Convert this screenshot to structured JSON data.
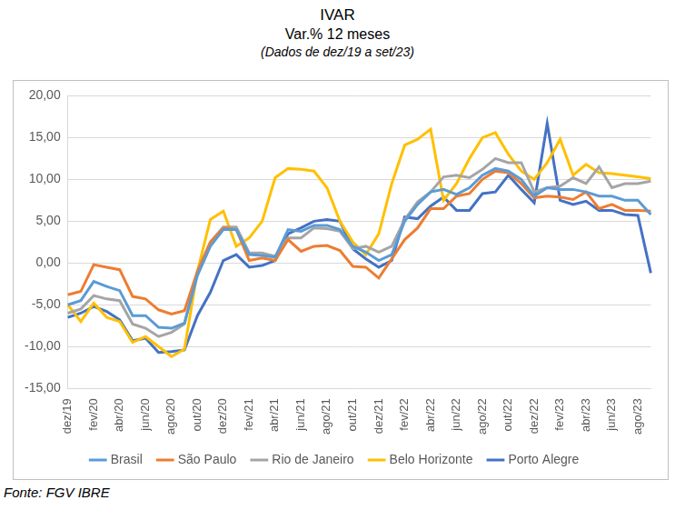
{
  "chart_data": {
    "type": "line",
    "title": "IVAR",
    "subtitle": "Var.% 12 meses",
    "annotations": [
      "(Dados de dez/19 a set/23)",
      "Fonte: FGV IBRE"
    ],
    "categories": [
      "dez/19",
      null,
      "fev/20",
      null,
      "abr/20",
      null,
      "jun/20",
      null,
      "ago/20",
      null,
      "out/20",
      null,
      "dez/20",
      null,
      "fev/21",
      null,
      "abr/21",
      null,
      "jun/21",
      null,
      "ago/21",
      null,
      "out/21",
      null,
      "dez/21",
      null,
      "fev/22",
      null,
      "abr/22",
      null,
      "jun/22",
      null,
      "ago/22",
      null,
      "out/22",
      null,
      "dez/22",
      null,
      "fev/23",
      null,
      "abr/23",
      null,
      "jun/23",
      null,
      "ago/23",
      null
    ],
    "series": [
      {
        "name": "Brasil",
        "color": "#5b9bd5",
        "values": [
          -5.0,
          -4.5,
          -2.2,
          -2.8,
          -3.3,
          -6.3,
          -6.3,
          -7.7,
          -7.8,
          -7.2,
          -1.5,
          2.0,
          4.0,
          4.0,
          1.0,
          0.9,
          0.7,
          4.0,
          3.8,
          4.5,
          4.5,
          4.0,
          2.0,
          1.3,
          0.3,
          1.0,
          5.0,
          7.0,
          8.5,
          8.8,
          8.2,
          9.0,
          10.5,
          11.3,
          11.0,
          10.0,
          8.0,
          9.0,
          8.8,
          8.8,
          8.5,
          8.0,
          8.0,
          7.5,
          7.5,
          5.8
        ]
      },
      {
        "name": "São Paulo",
        "color": "#ed7d31",
        "values": [
          -3.8,
          -3.4,
          -0.2,
          -0.5,
          -0.8,
          -4.0,
          -4.3,
          -5.6,
          -6.1,
          -5.7,
          -1.0,
          2.5,
          4.2,
          4.0,
          0.3,
          0.6,
          0.3,
          2.8,
          1.4,
          2.0,
          2.1,
          1.5,
          -0.4,
          -0.5,
          -1.8,
          0.5,
          2.8,
          4.2,
          6.5,
          6.5,
          8.0,
          8.3,
          10.0,
          11.0,
          10.8,
          9.5,
          7.8,
          8.0,
          7.9,
          7.6,
          8.5,
          6.5,
          7.0,
          6.3,
          6.3,
          6.2
        ]
      },
      {
        "name": "Rio de Janeiro",
        "color": "#a5a5a5",
        "values": [
          -6.0,
          -5.5,
          -3.9,
          -4.3,
          -4.5,
          -7.3,
          -7.8,
          -8.8,
          -8.3,
          -7.3,
          -1.0,
          2.5,
          4.3,
          4.3,
          1.2,
          1.2,
          0.8,
          3.0,
          3.0,
          4.2,
          4.1,
          3.8,
          1.7,
          2.0,
          1.3,
          2.0,
          5.2,
          7.3,
          8.5,
          10.3,
          10.5,
          10.2,
          11.2,
          12.5,
          12.0,
          12.0,
          8.5,
          9.0,
          9.2,
          10.2,
          9.5,
          11.5,
          9.0,
          9.5,
          9.5,
          9.8
        ]
      },
      {
        "name": "Belo Horizonte",
        "color": "#ffc000",
        "values": [
          -5.0,
          -7.0,
          -4.8,
          -6.5,
          -7.0,
          -9.5,
          -8.8,
          -10.0,
          -11.2,
          -10.3,
          -1.0,
          5.2,
          6.2,
          2.0,
          3.0,
          5.0,
          10.2,
          11.3,
          11.2,
          11.0,
          9.0,
          5.0,
          2.5,
          1.0,
          3.5,
          9.5,
          14.1,
          14.8,
          16.0,
          7.5,
          9.5,
          12.5,
          15.0,
          15.6,
          13.0,
          11.0,
          10.0,
          12.0,
          14.8,
          10.5,
          11.8,
          10.8,
          10.7,
          10.5,
          10.3,
          10.1
        ]
      },
      {
        "name": "Porto Alegre",
        "color": "#4472c4",
        "values": [
          -6.5,
          -6.0,
          -5.2,
          -5.8,
          -6.8,
          -9.3,
          -9.0,
          -10.7,
          -10.6,
          -10.4,
          -6.3,
          -3.5,
          0.3,
          1.0,
          -0.5,
          -0.3,
          0.3,
          3.5,
          4.2,
          5.0,
          5.2,
          5.0,
          1.7,
          0.5,
          -0.5,
          0.3,
          5.5,
          5.3,
          6.8,
          7.9,
          6.3,
          6.3,
          8.3,
          8.5,
          10.5,
          8.8,
          7.2,
          16.7,
          7.5,
          7.0,
          7.4,
          6.3,
          6.3,
          5.8,
          5.7,
          -1.2
        ]
      }
    ],
    "ylim": [
      -15,
      20
    ],
    "yticks": [
      {
        "value": -15,
        "label": "-15,00"
      },
      {
        "value": -10,
        "label": "-10,00"
      },
      {
        "value": -5,
        "label": "-5,00"
      },
      {
        "value": 0,
        "label": "0,00"
      },
      {
        "value": 5,
        "label": "5,00"
      },
      {
        "value": 10,
        "label": "10,00"
      },
      {
        "value": 15,
        "label": "15,00"
      },
      {
        "value": 20,
        "label": "20,00"
      }
    ],
    "grid": true,
    "legend": "bottom"
  }
}
